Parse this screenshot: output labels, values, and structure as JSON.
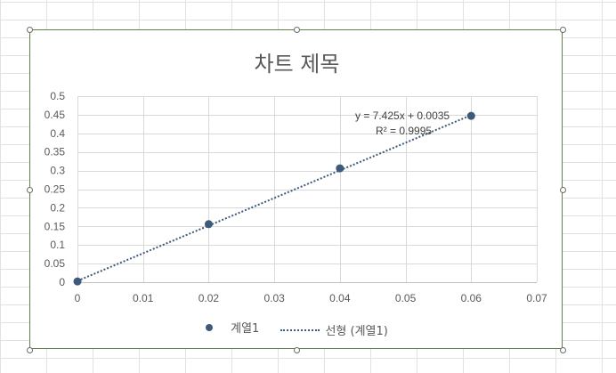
{
  "chart_data": {
    "type": "scatter",
    "title": "차트 제목",
    "xlabel": "",
    "ylabel": "",
    "xlim": [
      0,
      0.07
    ],
    "ylim": [
      0,
      0.5
    ],
    "x_ticks": [
      "0",
      "0.01",
      "0.02",
      "0.03",
      "0.04",
      "0.05",
      "0.06",
      "0.07"
    ],
    "y_ticks": [
      "0",
      "0.05",
      "0.1",
      "0.15",
      "0.2",
      "0.25",
      "0.3",
      "0.35",
      "0.4",
      "0.45",
      "0.5"
    ],
    "grid": true,
    "legend_position": "bottom",
    "series": [
      {
        "name": "계열1",
        "x": [
          0,
          0.02,
          0.04,
          0.06
        ],
        "y": [
          0.002,
          0.156,
          0.306,
          0.447
        ],
        "color": "#3d5a7a"
      }
    ],
    "trendline": {
      "name": "선형 (계열1)",
      "slope": 7.425,
      "intercept": 0.0035,
      "x_range": [
        0,
        0.06
      ],
      "style": "dotted",
      "color": "#3d5a7a",
      "equation_label": "y = 7.425x + 0.0035",
      "r2_label": "R² = 0.9995"
    }
  }
}
